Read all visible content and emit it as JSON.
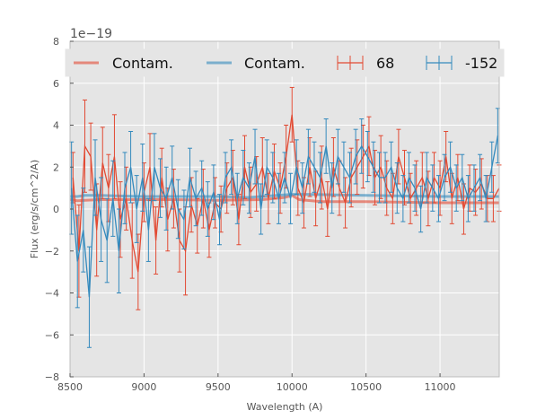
{
  "chart_data": {
    "type": "line",
    "title": "",
    "xlabel": "Wavelength (A)",
    "ylabel": "Flux (erg/s/cm^2/A)",
    "y_offset_label": "1e−19",
    "xlim": [
      8500,
      11400
    ],
    "ylim": [
      -8,
      8
    ],
    "x_ticks": [
      8500,
      9000,
      9500,
      10000,
      10500,
      11000
    ],
    "y_ticks": [
      -8,
      -6,
      -4,
      -2,
      0,
      2,
      4,
      6,
      8
    ],
    "grid": true,
    "legend_position": "top",
    "colors": {
      "red": "#E24A33",
      "blue": "#348ABD",
      "background": "#E5E5E5",
      "grid": "#FFFFFF"
    },
    "legend": [
      "Contam.",
      "Contam.",
      "68",
      "-152"
    ],
    "series": [
      {
        "name": "Contam.",
        "kind": "line",
        "color": "#E24A33",
        "x": [
          8500,
          8550,
          8600,
          8700,
          8800,
          9000,
          9200,
          9500,
          9800,
          9950,
          10000,
          10050,
          10200,
          10500,
          11000,
          11400
        ],
        "values": [
          0.45,
          0.4,
          0.42,
          0.45,
          0.45,
          0.45,
          0.45,
          0.42,
          0.45,
          0.55,
          0.65,
          0.45,
          0.35,
          0.35,
          0.3,
          0.3
        ]
      },
      {
        "name": "Contam.",
        "kind": "line",
        "color": "#348ABD",
        "x": [
          8500,
          8550,
          8600,
          8700,
          9000,
          9500,
          9700,
          9900,
          10000,
          10100,
          10500,
          11000,
          11400
        ],
        "values": [
          0.6,
          0.6,
          0.65,
          0.65,
          0.6,
          0.6,
          0.55,
          0.65,
          0.7,
          0.7,
          0.65,
          0.6,
          0.6
        ]
      },
      {
        "name": "68",
        "kind": "errorbar",
        "color": "#E24A33",
        "x": [
          8520,
          8560,
          8600,
          8640,
          8680,
          8720,
          8760,
          8800,
          8840,
          8880,
          8920,
          8960,
          9000,
          9040,
          9080,
          9120,
          9160,
          9200,
          9240,
          9280,
          9320,
          9360,
          9400,
          9440,
          9480,
          9520,
          9560,
          9600,
          9640,
          9680,
          9720,
          9760,
          9800,
          9840,
          9880,
          9920,
          9960,
          10000,
          10040,
          10080,
          10120,
          10160,
          10200,
          10240,
          10280,
          10320,
          10360,
          10400,
          10440,
          10480,
          10520,
          10560,
          10600,
          10640,
          10680,
          10720,
          10760,
          10800,
          10840,
          10880,
          10920,
          10960,
          11000,
          11040,
          11080,
          11120,
          11160,
          11200,
          11240,
          11280,
          11320,
          11360,
          11400
        ],
        "values": [
          1.5,
          -2.0,
          3.0,
          2.5,
          -1.0,
          2.2,
          1.0,
          2.5,
          -0.5,
          0.5,
          -1.5,
          -3.0,
          0.8,
          2.0,
          -1.5,
          1.5,
          -0.5,
          0.5,
          -1.5,
          -2.0,
          0.2,
          -0.8,
          0.5,
          -1.0,
          0.3,
          0.0,
          1.0,
          1.5,
          -0.5,
          2.0,
          0.8,
          1.2,
          2.0,
          0.5,
          1.8,
          1.0,
          2.5,
          4.5,
          1.0,
          0.3,
          2.0,
          0.5,
          1.5,
          0.0,
          2.0,
          1.0,
          0.3,
          1.5,
          2.0,
          2.5,
          3.0,
          1.5,
          2.0,
          1.0,
          0.5,
          2.5,
          1.5,
          0.5,
          1.0,
          1.5,
          0.5,
          1.5,
          1.0,
          2.5,
          0.5,
          1.5,
          0.0,
          1.0,
          0.8,
          1.2,
          0.5,
          0.5,
          1.0
        ],
        "errors": [
          1.2,
          2.2,
          2.2,
          1.6,
          2.2,
          1.7,
          1.6,
          2.0,
          1.8,
          1.5,
          1.8,
          1.8,
          1.4,
          1.6,
          1.6,
          1.4,
          1.5,
          1.4,
          1.5,
          2.1,
          1.3,
          1.3,
          1.4,
          1.3,
          1.2,
          1.1,
          1.2,
          1.3,
          1.2,
          1.5,
          1.2,
          1.3,
          1.4,
          1.2,
          1.3,
          1.2,
          1.5,
          1.3,
          1.3,
          1.2,
          1.4,
          1.3,
          1.5,
          1.3,
          1.4,
          1.3,
          1.2,
          1.4,
          1.3,
          1.5,
          1.4,
          1.3,
          1.5,
          1.3,
          1.2,
          1.3,
          1.3,
          1.2,
          1.3,
          1.2,
          1.3,
          1.2,
          1.3,
          1.2,
          1.2,
          1.1,
          1.2,
          1.1,
          1.1,
          1.2,
          1.1,
          1.1,
          1.1
        ]
      },
      {
        "name": "-152",
        "kind": "errorbar",
        "color": "#348ABD",
        "x": [
          8510,
          8550,
          8590,
          8630,
          8670,
          8710,
          8750,
          8790,
          8830,
          8870,
          8910,
          8950,
          8990,
          9030,
          9070,
          9110,
          9150,
          9190,
          9230,
          9270,
          9310,
          9350,
          9390,
          9430,
          9470,
          9510,
          9550,
          9590,
          9630,
          9670,
          9710,
          9750,
          9790,
          9830,
          9870,
          9910,
          9950,
          9990,
          10030,
          10070,
          10110,
          10150,
          10190,
          10230,
          10270,
          10310,
          10350,
          10390,
          10430,
          10470,
          10510,
          10550,
          10590,
          10630,
          10670,
          10710,
          10750,
          10790,
          10830,
          10870,
          10910,
          10950,
          10990,
          11030,
          11070,
          11110,
          11150,
          11190,
          11230,
          11270,
          11310,
          11350,
          11390
        ],
        "values": [
          1.0,
          -2.5,
          -1.0,
          -4.2,
          1.5,
          -0.5,
          -1.5,
          0.5,
          -2.0,
          1.0,
          2.0,
          0.0,
          1.5,
          -1.0,
          2.0,
          1.0,
          0.5,
          1.5,
          0.0,
          -0.5,
          1.5,
          0.5,
          1.0,
          0.0,
          0.8,
          -0.5,
          1.5,
          2.0,
          0.5,
          1.5,
          1.0,
          2.5,
          0.0,
          2.0,
          1.5,
          0.5,
          1.5,
          0.5,
          2.0,
          1.0,
          2.5,
          2.0,
          1.5,
          3.0,
          1.0,
          2.5,
          2.0,
          1.5,
          2.5,
          3.0,
          2.5,
          2.0,
          1.5,
          1.5,
          2.0,
          1.0,
          0.5,
          1.5,
          1.0,
          0.0,
          1.5,
          1.0,
          0.5,
          1.5,
          2.0,
          1.0,
          1.5,
          0.5,
          1.0,
          1.5,
          0.5,
          2.0,
          3.5
        ],
        "errors": [
          2.2,
          2.2,
          2.0,
          2.4,
          1.8,
          2.0,
          2.0,
          1.8,
          2.0,
          1.7,
          1.7,
          1.6,
          1.6,
          1.5,
          1.6,
          1.4,
          1.5,
          1.5,
          1.4,
          1.4,
          1.4,
          1.3,
          1.3,
          1.3,
          1.3,
          1.2,
          1.2,
          1.3,
          1.2,
          1.3,
          1.2,
          1.3,
          1.2,
          1.3,
          1.2,
          1.2,
          1.2,
          1.2,
          1.3,
          1.2,
          1.3,
          1.2,
          1.2,
          1.3,
          1.2,
          1.3,
          1.2,
          1.2,
          1.3,
          1.3,
          1.2,
          1.2,
          1.2,
          1.2,
          1.2,
          1.2,
          1.1,
          1.2,
          1.1,
          1.1,
          1.2,
          1.1,
          1.1,
          1.1,
          1.2,
          1.1,
          1.1,
          1.1,
          1.1,
          1.1,
          1.1,
          1.2,
          1.3
        ]
      }
    ]
  }
}
